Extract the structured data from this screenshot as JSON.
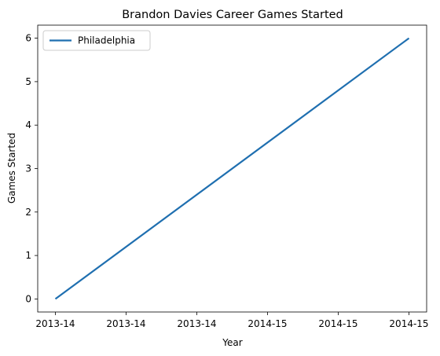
{
  "chart_data": {
    "type": "line",
    "title": "Brandon Davies Career Games Started",
    "xlabel": "Year",
    "ylabel": "Games Started",
    "x_tick_labels": [
      "2013-14",
      "2013-14",
      "2013-14",
      "2014-15",
      "2014-15",
      "2014-15"
    ],
    "y_ticks": [
      0,
      1,
      2,
      3,
      4,
      5,
      6
    ],
    "xlim": [
      -0.25,
      5.25
    ],
    "ylim": [
      -0.3,
      6.3
    ],
    "series": [
      {
        "name": "Philadelphia",
        "color": "#1f6fb0",
        "x": [
          0,
          5
        ],
        "y": [
          0,
          6
        ]
      }
    ],
    "legend_position": "upper-left",
    "grid": false
  }
}
